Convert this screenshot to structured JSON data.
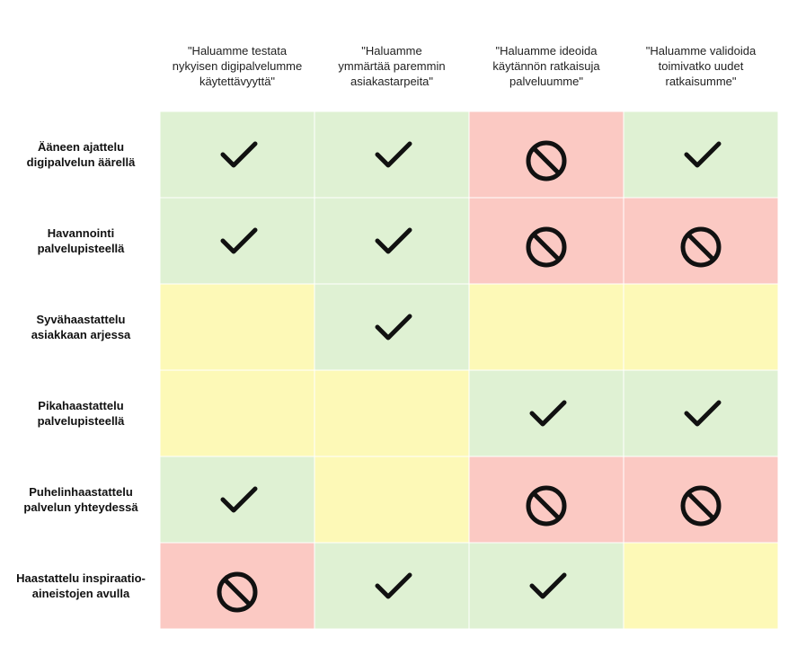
{
  "chart_data": {
    "type": "table",
    "columns": [
      "\"Haluamme testata\nnykyisen digipalvelumme\nkäytettävyyttä\"",
      "\"Haluamme\nymmärtää paremmin\nasiakastarpeita\"",
      "\"Haluamme ideoida\nkäytännön ratkaisuja\npalveluumme\"",
      "\"Haluamme validoida\ntoimivatko uudet\nratkaisumme\""
    ],
    "rows": [
      "Ääneen ajattelu\ndigipalvelun äärellä",
      "Havannointi\npalvelupisteellä",
      "Syvähaastattelu\nasiakkaan arjessa",
      "Pikahaastattelu\npalvelupisteellä",
      "Puhelinhaastattelu\npalvelun yhteydessä",
      "Haastattelu inspiraatio-\naineistojen avulla"
    ],
    "cells": [
      [
        "yes",
        "yes",
        "no",
        "yes"
      ],
      [
        "yes",
        "yes",
        "no",
        "no"
      ],
      [
        "neutral",
        "yes",
        "neutral",
        "neutral"
      ],
      [
        "neutral",
        "neutral",
        "yes",
        "yes"
      ],
      [
        "yes",
        "neutral",
        "no",
        "no"
      ],
      [
        "no",
        "yes",
        "yes",
        "neutral"
      ]
    ],
    "colors": {
      "yes": "#dff1d3",
      "no": "#fbc9c3",
      "neutral": "#fdf9b7",
      "icon": "#111111"
    },
    "icons": {
      "yes": "check-icon",
      "no": "prohibited-icon"
    }
  }
}
